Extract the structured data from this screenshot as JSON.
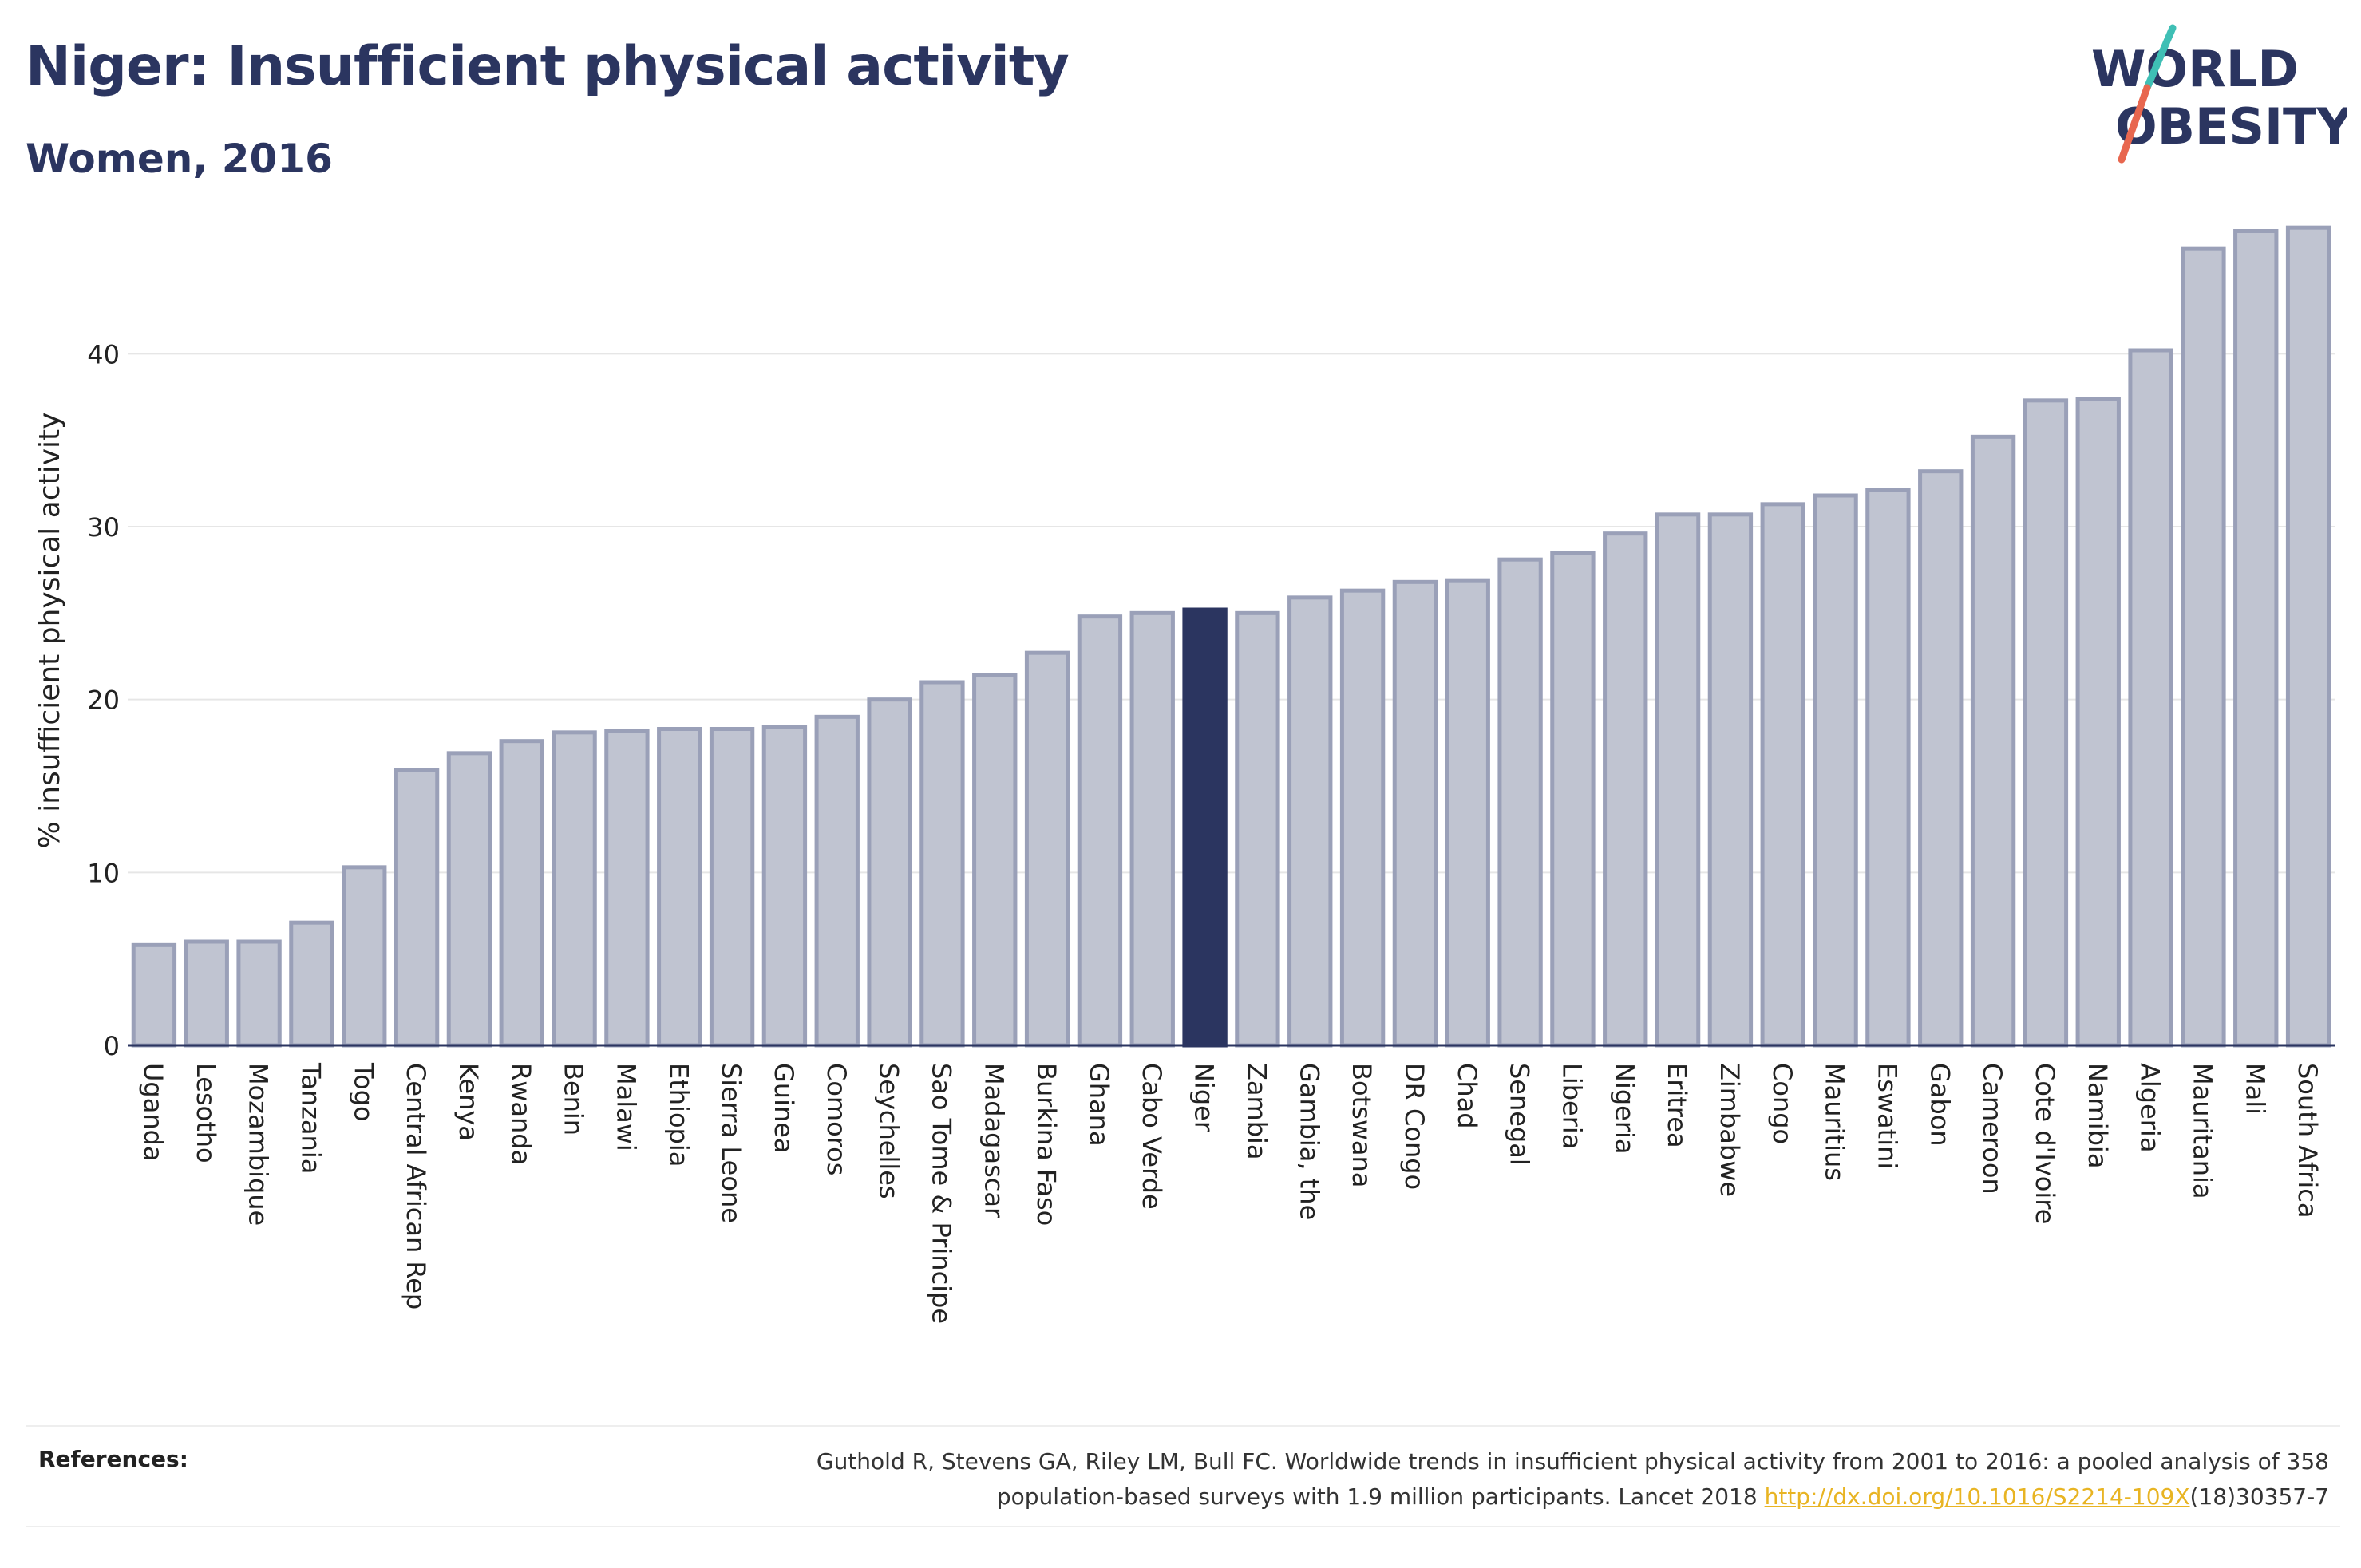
{
  "header": {
    "title": "Niger: Insufficient physical activity",
    "subtitle": "Women, 2016"
  },
  "logo": {
    "line1": "WORLD",
    "line2": "OBESITY",
    "text_color": "#2b3560",
    "slash_top_color": "#3fbfb5",
    "slash_bottom_color": "#e8674f"
  },
  "colors": {
    "bar_fill": "#c0c4d1",
    "bar_stroke": "#9aa0b8",
    "highlight": "#2b3560"
  },
  "chart_data": {
    "type": "bar",
    "ylabel": "% insufficient physical activity",
    "ylim": [
      0,
      48
    ],
    "yticks": [
      0,
      10,
      20,
      30,
      40
    ],
    "grid": true,
    "highlight": "Niger",
    "categories": [
      "Uganda",
      "Lesotho",
      "Mozambique",
      "Tanzania",
      "Togo",
      "Central African Rep",
      "Kenya",
      "Rwanda",
      "Benin",
      "Malawi",
      "Ethiopia",
      "Sierra Leone",
      "Guinea",
      "Comoros",
      "Seychelles",
      "Sao Tome & Principe",
      "Madagascar",
      "Burkina Faso",
      "Ghana",
      "Cabo Verde",
      "Niger",
      "Zambia",
      "Gambia, the",
      "Botswana",
      "DR Congo",
      "Chad",
      "Senegal",
      "Liberia",
      "Nigeria",
      "Eritrea",
      "Zimbabwe",
      "Congo",
      "Mauritius",
      "Eswatini",
      "Gabon",
      "Cameroon",
      "Cote d'Ivoire",
      "Namibia",
      "Algeria",
      "Mauritania",
      "Mali",
      "South Africa"
    ],
    "values": [
      5.8,
      6.0,
      6.0,
      7.1,
      10.3,
      15.9,
      16.9,
      17.6,
      18.1,
      18.2,
      18.3,
      18.3,
      18.4,
      19.0,
      20.0,
      21.0,
      21.4,
      22.7,
      24.8,
      25.0,
      25.2,
      25.0,
      25.9,
      26.3,
      26.8,
      26.9,
      28.1,
      28.5,
      29.6,
      30.7,
      30.7,
      31.3,
      31.8,
      32.1,
      33.2,
      35.2,
      37.3,
      37.4,
      40.2,
      46.1,
      47.1,
      47.3
    ]
  },
  "references": {
    "label": "References:",
    "line1": "Guthold R, Stevens GA, Riley LM, Bull FC. Worldwide trends in insufficient physical activity from 2001 to 2016: a pooled analysis of 358",
    "line2_prefix": "population-based surveys with 1.9 million participants. Lancet 2018 ",
    "link": "http://dx.doi.org/10.1016/S2214-109X",
    "line2_suffix": "(18)30357-7"
  }
}
